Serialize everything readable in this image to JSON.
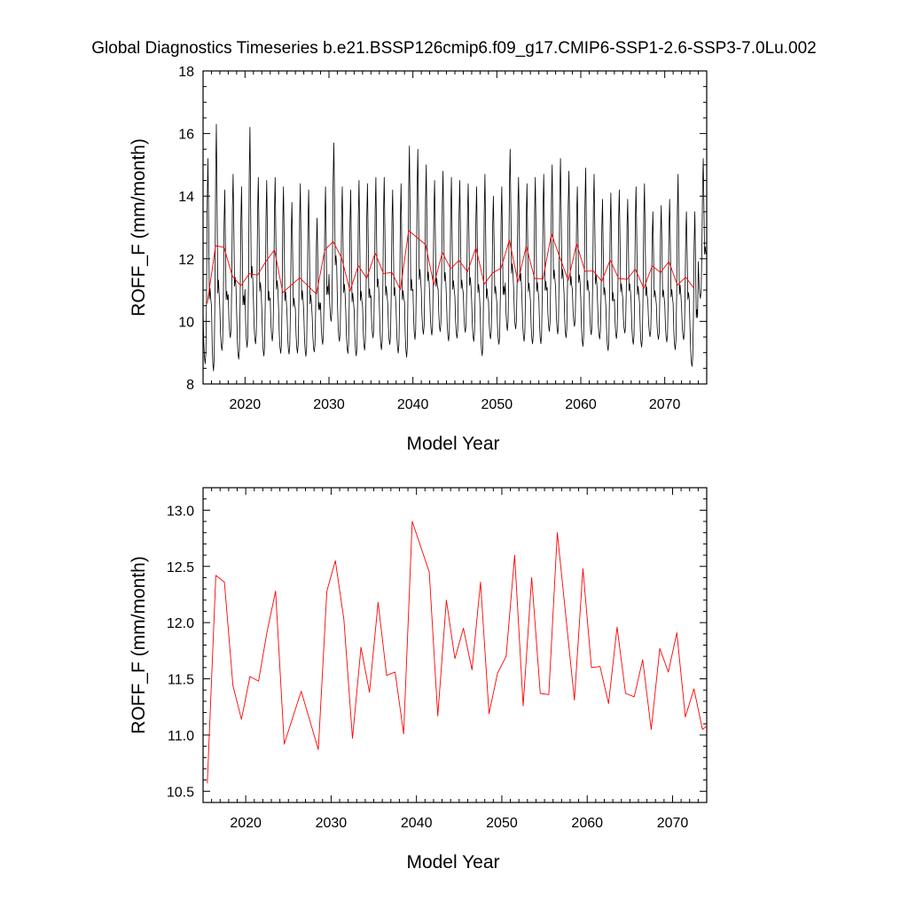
{
  "title": "Global Diagnostics Timeseries b.e21.BSSP126cmip6.f09_g17.CMIP6-SSP1-2.6-SSP3-7.0Lu.002",
  "chart_data": [
    {
      "type": "line",
      "xlabel": "Model Year",
      "ylabel": "ROFF_F (mm/month)",
      "xlim": [
        2015,
        2075
      ],
      "ylim": [
        8,
        18
      ],
      "xticks": [
        2020,
        2030,
        2040,
        2050,
        2060,
        2070
      ],
      "yticks": [
        8,
        10,
        12,
        14,
        16,
        18
      ],
      "ytick_labels": [
        "8",
        "10",
        "12",
        "14",
        "16",
        "18"
      ],
      "series": [
        {
          "kind": "monthly",
          "color": "#000000",
          "note_start_year": 2015,
          "annual_max": [
            15.2,
            16.3,
            14.2,
            14.7,
            14.3,
            16.2,
            14.6,
            14.5,
            14.6,
            14.3,
            13.8,
            14.4,
            14.2,
            13.3,
            14.3,
            15.7,
            14.3,
            14.2,
            14.5,
            14.4,
            14.6,
            14.6,
            14.2,
            14.4,
            15.6,
            15.5,
            15.0,
            14.5,
            14.8,
            14.6,
            14.5,
            14.4,
            14.3,
            14.7,
            14.0,
            14.3,
            15.5,
            14.6,
            14.4,
            14.6,
            14.7,
            15.0,
            15.2,
            14.8,
            14.3,
            14.9,
            14.7,
            13.9,
            14.1,
            14.2,
            13.9,
            14.3,
            14.4,
            13.5,
            13.7,
            13.9,
            14.7,
            13.5,
            13.5,
            15.2
          ],
          "annual_min": [
            8.3,
            8.0,
            8.8,
            9.2,
            8.5,
            8.8,
            9.0,
            8.6,
            9.1,
            8.7,
            8.7,
            8.7,
            8.6,
            8.8,
            9.0,
            9.7,
            9.1,
            8.7,
            8.6,
            8.8,
            9.2,
            8.8,
            9.0,
            8.7,
            8.5,
            9.1,
            9.3,
            9.3,
            9.4,
            9.1,
            9.2,
            9.4,
            9.1,
            8.6,
            9.2,
            9.0,
            9.4,
            9.5,
            9.1,
            9.0,
            9.0,
            9.4,
            9.3,
            9.2,
            9.6,
            8.9,
            9.3,
            9.2,
            8.8,
            9.2,
            9.4,
            9.0,
            8.9,
            9.3,
            9.2,
            9.1,
            8.8,
            9.2,
            8.3,
            10.5
          ]
        },
        {
          "kind": "annual_mean",
          "color": "#ff0000",
          "x": [
            2015.5,
            2016.5,
            2017.5,
            2018.5,
            2019.5,
            2020.5,
            2021.5,
            2022.5,
            2023.5,
            2024.5,
            2026.5,
            2028.5,
            2029.5,
            2030.5,
            2031.5,
            2032.5,
            2033.5,
            2034.5,
            2035.5,
            2036.5,
            2037.5,
            2038.5,
            2039.5,
            2041.5,
            2042.5,
            2043.5,
            2044.5,
            2045.5,
            2046.5,
            2047.5,
            2048.5,
            2049.5,
            2050.5,
            2051.5,
            2052.5,
            2053.5,
            2054.5,
            2055.5,
            2056.5,
            2057.5,
            2058.5,
            2059.5,
            2060.5,
            2061.5,
            2062.5,
            2063.5,
            2064.5,
            2065.5,
            2066.5,
            2067.5,
            2068.5,
            2069.5,
            2070.5,
            2071.5,
            2072.5,
            2073.5
          ],
          "y": [
            10.57,
            12.42,
            12.36,
            11.44,
            11.14,
            11.52,
            11.48,
            11.92,
            12.28,
            10.92,
            11.39,
            10.87,
            12.28,
            12.55,
            12.03,
            10.97,
            11.78,
            11.38,
            12.18,
            11.53,
            11.56,
            11.01,
            12.9,
            12.45,
            11.17,
            12.2,
            11.68,
            11.95,
            11.58,
            12.36,
            11.19,
            11.55,
            11.7,
            12.6,
            11.26,
            12.4,
            11.37,
            11.36,
            12.8,
            12.05,
            11.31,
            12.48,
            11.6,
            11.61,
            11.28,
            11.96,
            11.37,
            11.34,
            11.67,
            11.05,
            11.77,
            11.56,
            11.91,
            11.16,
            11.41,
            11.05
          ]
        }
      ]
    },
    {
      "type": "line",
      "xlabel": "Model Year",
      "ylabel": "ROFF_F (mm/month)",
      "xlim": [
        2015,
        2074
      ],
      "ylim": [
        10.4,
        13.2
      ],
      "xticks": [
        2020,
        2030,
        2040,
        2050,
        2060,
        2070
      ],
      "yticks": [
        10.5,
        11.0,
        11.5,
        12.0,
        12.5,
        13.0
      ],
      "ytick_labels": [
        "10.5",
        "11.0",
        "11.5",
        "12.0",
        "12.5",
        "13.0"
      ],
      "series": [
        {
          "kind": "annual_mean",
          "color": "#ff0000",
          "x": [
            2015.5,
            2016.5,
            2017.5,
            2018.5,
            2019.5,
            2020.5,
            2021.5,
            2022.5,
            2023.5,
            2024.5,
            2026.5,
            2028.5,
            2029.5,
            2030.5,
            2031.5,
            2032.5,
            2033.5,
            2034.5,
            2035.5,
            2036.5,
            2037.5,
            2038.5,
            2039.5,
            2041.5,
            2042.5,
            2043.5,
            2044.5,
            2045.5,
            2046.5,
            2047.5,
            2048.5,
            2049.5,
            2050.5,
            2051.5,
            2052.5,
            2053.5,
            2054.5,
            2055.5,
            2056.5,
            2057.5,
            2058.5,
            2059.5,
            2060.5,
            2061.5,
            2062.5,
            2063.5,
            2064.5,
            2065.5,
            2066.5,
            2067.5,
            2068.5,
            2069.5,
            2070.5,
            2071.5,
            2072.5,
            2073.5,
            2074.0
          ],
          "y": [
            10.57,
            12.42,
            12.36,
            11.44,
            11.14,
            11.52,
            11.48,
            11.92,
            12.28,
            10.92,
            11.39,
            10.87,
            12.28,
            12.55,
            12.03,
            10.97,
            11.78,
            11.38,
            12.18,
            11.53,
            11.56,
            11.01,
            12.9,
            12.45,
            11.17,
            12.2,
            11.68,
            11.95,
            11.58,
            12.36,
            11.19,
            11.55,
            11.7,
            12.6,
            11.26,
            12.4,
            11.37,
            11.36,
            12.8,
            12.05,
            11.31,
            12.48,
            11.6,
            11.61,
            11.28,
            11.96,
            11.37,
            11.34,
            11.67,
            11.05,
            11.77,
            11.56,
            11.91,
            11.16,
            11.41,
            11.05,
            11.08
          ]
        }
      ]
    }
  ]
}
